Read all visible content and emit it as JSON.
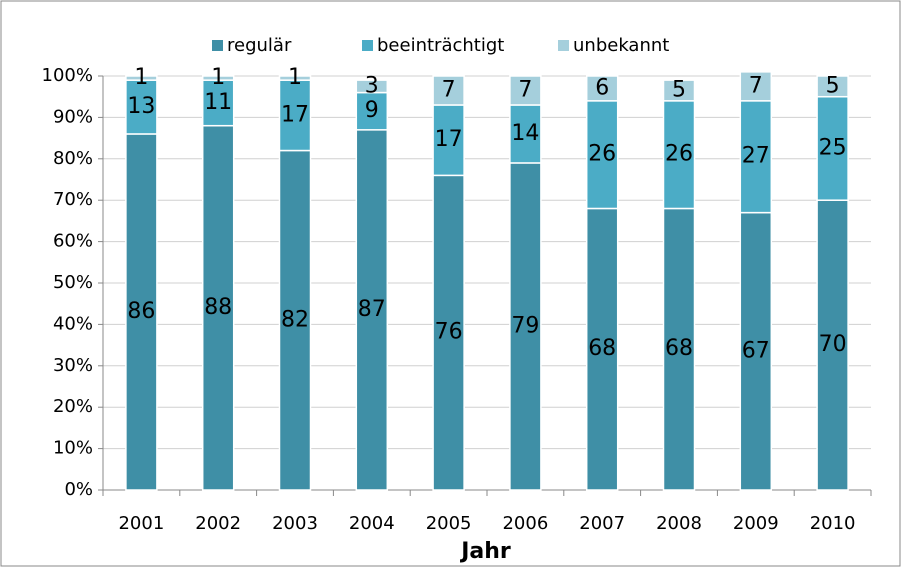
{
  "chart_data": {
    "type": "stacked-bar",
    "x_label": "Jahr",
    "categories": [
      "2001",
      "2002",
      "2003",
      "2004",
      "2005",
      "2006",
      "2007",
      "2008",
      "2009",
      "2010"
    ],
    "series": [
      {
        "name": "regulär",
        "color": "#3f8fa6",
        "values": [
          86,
          88,
          82,
          87,
          76,
          79,
          68,
          68,
          67,
          70
        ]
      },
      {
        "name": "beeinträchtigt",
        "color": "#4bacc6",
        "values": [
          13,
          11,
          17,
          9,
          17,
          14,
          26,
          26,
          27,
          25
        ]
      },
      {
        "name": "unbekannt",
        "color": "#a5cfdc",
        "values": [
          1,
          1,
          1,
          3,
          7,
          7,
          6,
          5,
          7,
          5
        ]
      }
    ],
    "ylim": [
      0,
      100
    ],
    "yticks": [
      {
        "value": 0,
        "label": "0%"
      },
      {
        "value": 10,
        "label": "10%"
      },
      {
        "value": 20,
        "label": "20%"
      },
      {
        "value": 30,
        "label": "30%"
      },
      {
        "value": 40,
        "label": "40%"
      },
      {
        "value": 50,
        "label": "50%"
      },
      {
        "value": 60,
        "label": "60%"
      },
      {
        "value": 70,
        "label": "70%"
      },
      {
        "value": 80,
        "label": "80%"
      },
      {
        "value": 90,
        "label": "90%"
      },
      {
        "value": 100,
        "label": "100%"
      }
    ],
    "grid": true,
    "legend": "top"
  }
}
